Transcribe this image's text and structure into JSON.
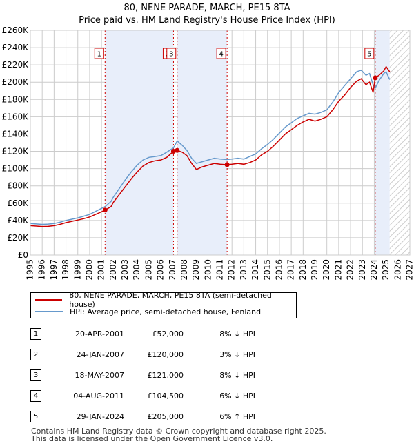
{
  "title_line1": "80, NENE PARADE, MARCH, PE15 8TA",
  "title_line2": "Price paid vs. HM Land Registry's House Price Index (HPI)",
  "chart_data": {
    "type": "line",
    "title": "80, NENE PARADE, MARCH, PE15 8TA — Price paid vs. HM Land Registry's House Price Index (HPI)",
    "xlim": [
      1995,
      2027
    ],
    "ylim": [
      0,
      260000
    ],
    "x_ticks": [
      "1995",
      "1996",
      "1997",
      "1998",
      "1999",
      "2000",
      "2001",
      "2002",
      "2003",
      "2004",
      "2005",
      "2006",
      "2007",
      "2008",
      "2009",
      "2010",
      "2011",
      "2012",
      "2013",
      "2014",
      "2015",
      "2016",
      "2017",
      "2018",
      "2019",
      "2020",
      "2021",
      "2022",
      "2023",
      "2024",
      "2025",
      "2026",
      "2027"
    ],
    "y_ticks": [
      {
        "value": 0,
        "label": "£0"
      },
      {
        "value": 20000,
        "label": "£20K"
      },
      {
        "value": 40000,
        "label": "£40K"
      },
      {
        "value": 60000,
        "label": "£60K"
      },
      {
        "value": 80000,
        "label": "£80K"
      },
      {
        "value": 100000,
        "label": "£100K"
      },
      {
        "value": 120000,
        "label": "£120K"
      },
      {
        "value": 140000,
        "label": "£140K"
      },
      {
        "value": 160000,
        "label": "£160K"
      },
      {
        "value": 180000,
        "label": "£180K"
      },
      {
        "value": 200000,
        "label": "£200K"
      },
      {
        "value": 220000,
        "label": "£220K"
      },
      {
        "value": 240000,
        "label": "£240K"
      },
      {
        "value": 260000,
        "label": "£260K"
      }
    ],
    "hatch_from": 2025.3,
    "series": [
      {
        "name": "80, NENE PARADE, MARCH, PE15 8TA (semi-detached house)",
        "color": "#cc0000",
        "points": [
          [
            1995,
            34000
          ],
          [
            1995.5,
            33500
          ],
          [
            1996,
            33000
          ],
          [
            1996.5,
            33200
          ],
          [
            1997,
            34000
          ],
          [
            1997.5,
            35500
          ],
          [
            1998,
            37500
          ],
          [
            1998.5,
            39000
          ],
          [
            1999,
            40500
          ],
          [
            1999.5,
            42000
          ],
          [
            2000,
            44000
          ],
          [
            2000.5,
            47000
          ],
          [
            2001,
            50000
          ],
          [
            2001.3,
            52000
          ],
          [
            2001.8,
            56000
          ],
          [
            2002,
            61000
          ],
          [
            2002.5,
            70000
          ],
          [
            2003,
            79000
          ],
          [
            2003.5,
            88000
          ],
          [
            2004,
            96000
          ],
          [
            2004.5,
            103000
          ],
          [
            2005,
            107000
          ],
          [
            2005.5,
            109000
          ],
          [
            2006,
            110000
          ],
          [
            2006.5,
            113000
          ],
          [
            2007.07,
            120000
          ],
          [
            2007.38,
            121000
          ],
          [
            2007.8,
            119000
          ],
          [
            2008.2,
            115000
          ],
          [
            2008.6,
            106000
          ],
          [
            2009,
            99000
          ],
          [
            2009.5,
            102000
          ],
          [
            2010,
            104000
          ],
          [
            2010.5,
            106000
          ],
          [
            2011,
            105000
          ],
          [
            2011.59,
            104500
          ],
          [
            2012,
            105000
          ],
          [
            2012.5,
            106000
          ],
          [
            2013,
            105000
          ],
          [
            2013.5,
            107000
          ],
          [
            2014,
            110000
          ],
          [
            2014.5,
            116000
          ],
          [
            2015,
            120000
          ],
          [
            2015.5,
            126000
          ],
          [
            2016,
            133000
          ],
          [
            2016.5,
            140000
          ],
          [
            2017,
            145000
          ],
          [
            2017.5,
            150000
          ],
          [
            2018,
            154000
          ],
          [
            2018.5,
            157000
          ],
          [
            2019,
            155000
          ],
          [
            2019.5,
            157000
          ],
          [
            2020,
            160000
          ],
          [
            2020.5,
            168000
          ],
          [
            2021,
            178000
          ],
          [
            2021.5,
            185000
          ],
          [
            2022,
            194000
          ],
          [
            2022.5,
            201000
          ],
          [
            2022.9,
            204000
          ],
          [
            2023.3,
            197000
          ],
          [
            2023.6,
            200000
          ],
          [
            2023.9,
            188000
          ],
          [
            2024.08,
            205000
          ],
          [
            2024.4,
            208000
          ],
          [
            2024.8,
            213000
          ],
          [
            2025,
            218000
          ],
          [
            2025.3,
            212000
          ]
        ]
      },
      {
        "name": "HPI: Average price, semi-detached house, Fenland",
        "color": "#6699cc",
        "points": [
          [
            1995,
            36500
          ],
          [
            1995.5,
            36000
          ],
          [
            1996,
            35500
          ],
          [
            1996.5,
            35800
          ],
          [
            1997,
            36500
          ],
          [
            1997.5,
            38000
          ],
          [
            1998,
            40000
          ],
          [
            1998.5,
            41500
          ],
          [
            1999,
            43000
          ],
          [
            1999.5,
            45000
          ],
          [
            2000,
            47000
          ],
          [
            2000.5,
            50500
          ],
          [
            2001,
            54000
          ],
          [
            2001.3,
            56000
          ],
          [
            2001.8,
            62000
          ],
          [
            2002,
            67000
          ],
          [
            2002.5,
            77000
          ],
          [
            2003,
            87000
          ],
          [
            2003.5,
            96000
          ],
          [
            2004,
            104000
          ],
          [
            2004.5,
            110000
          ],
          [
            2005,
            113000
          ],
          [
            2005.5,
            114000
          ],
          [
            2006,
            115000
          ],
          [
            2006.5,
            119000
          ],
          [
            2007.07,
            124000
          ],
          [
            2007.38,
            132000
          ],
          [
            2007.8,
            127000
          ],
          [
            2008.2,
            121000
          ],
          [
            2008.6,
            112000
          ],
          [
            2009,
            106000
          ],
          [
            2009.5,
            108000
          ],
          [
            2010,
            110000
          ],
          [
            2010.5,
            112000
          ],
          [
            2011,
            111000
          ],
          [
            2011.59,
            110500
          ],
          [
            2012,
            111000
          ],
          [
            2012.5,
            112000
          ],
          [
            2013,
            111000
          ],
          [
            2013.5,
            114000
          ],
          [
            2014,
            117000
          ],
          [
            2014.5,
            123000
          ],
          [
            2015,
            128000
          ],
          [
            2015.5,
            134000
          ],
          [
            2016,
            141000
          ],
          [
            2016.5,
            148000
          ],
          [
            2017,
            153000
          ],
          [
            2017.5,
            158000
          ],
          [
            2018,
            161000
          ],
          [
            2018.5,
            164000
          ],
          [
            2019,
            163000
          ],
          [
            2019.5,
            165000
          ],
          [
            2020,
            168000
          ],
          [
            2020.5,
            177000
          ],
          [
            2021,
            188000
          ],
          [
            2021.5,
            196000
          ],
          [
            2022,
            204000
          ],
          [
            2022.5,
            212000
          ],
          [
            2022.9,
            214000
          ],
          [
            2023.3,
            208000
          ],
          [
            2023.6,
            210000
          ],
          [
            2023.9,
            197000
          ],
          [
            2024.08,
            193000
          ],
          [
            2024.4,
            202000
          ],
          [
            2024.8,
            210000
          ],
          [
            2025,
            212000
          ],
          [
            2025.3,
            203000
          ]
        ]
      }
    ],
    "annotations": [
      {
        "id": "1",
        "x": 2001.3,
        "price": 52000
      },
      {
        "id": "2",
        "x": 2007.07,
        "price": 120000
      },
      {
        "id": "3",
        "x": 2007.38,
        "price": 121000
      },
      {
        "id": "4",
        "x": 2011.59,
        "price": 104500
      },
      {
        "id": "5",
        "x": 2024.08,
        "price": 205000
      }
    ]
  },
  "legend": {
    "property_label": "80, NENE PARADE, MARCH, PE15 8TA (semi-detached house)",
    "hpi_label": "HPI: Average price, semi-detached house, Fenland"
  },
  "transactions": [
    {
      "num": "1",
      "date": "20-APR-2001",
      "price": "£52,000",
      "hpi": "8% ↓ HPI"
    },
    {
      "num": "2",
      "date": "24-JAN-2007",
      "price": "£120,000",
      "hpi": "3% ↓ HPI"
    },
    {
      "num": "3",
      "date": "18-MAY-2007",
      "price": "£121,000",
      "hpi": "8% ↓ HPI"
    },
    {
      "num": "4",
      "date": "04-AUG-2011",
      "price": "£104,500",
      "hpi": "6% ↓ HPI"
    },
    {
      "num": "5",
      "date": "29-JAN-2024",
      "price": "£205,000",
      "hpi": "6% ↑ HPI"
    }
  ],
  "footer": {
    "line1": "Contains HM Land Registry data © Crown copyright and database right 2025.",
    "line2": "This data is licensed under the Open Government Licence v3.0."
  }
}
